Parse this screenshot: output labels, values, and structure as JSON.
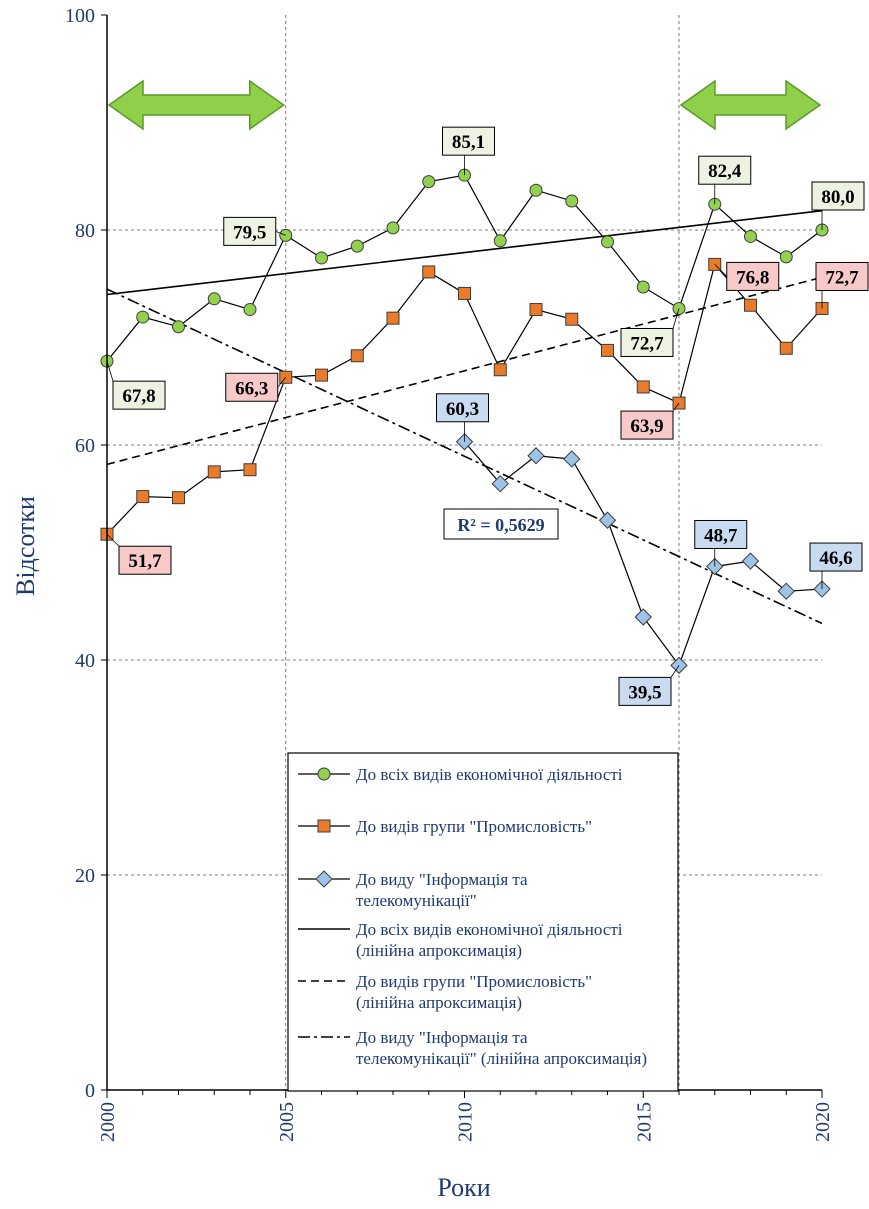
{
  "chart_data": {
    "type": "line",
    "xlabel": "Роки",
    "ylabel": "Відсотки",
    "xlim": [
      2000,
      2020
    ],
    "ylim": [
      0,
      100
    ],
    "x_ticks": [
      "2000",
      "2005",
      "2010",
      "2015",
      "2020"
    ],
    "y_ticks": [
      "0",
      "20",
      "40",
      "60",
      "80",
      "100"
    ],
    "vertical_reference_lines": [
      2005,
      2016
    ],
    "highlight_arrows": [
      [
        2000,
        2005
      ],
      [
        2016,
        2020
      ]
    ],
    "x": [
      2000,
      2001,
      2002,
      2003,
      2004,
      2005,
      2006,
      2007,
      2008,
      2009,
      2010,
      2011,
      2012,
      2013,
      2014,
      2015,
      2016,
      2017,
      2018,
      2019,
      2020
    ],
    "series": [
      {
        "name": "До всіх видів економічної діяльності",
        "marker": "circle",
        "color": "#92d050",
        "values": [
          67.8,
          71.9,
          71.0,
          73.6,
          72.6,
          79.5,
          77.4,
          78.5,
          80.2,
          84.5,
          85.1,
          79.0,
          83.7,
          82.7,
          78.9,
          74.7,
          72.7,
          82.4,
          79.4,
          77.5,
          80.0
        ]
      },
      {
        "name": "До видів групи \"Промисловість\"",
        "marker": "square",
        "color": "#e97b2b",
        "values": [
          51.7,
          55.2,
          55.1,
          57.5,
          57.7,
          66.3,
          66.5,
          68.3,
          71.8,
          76.1,
          74.1,
          67.0,
          72.6,
          71.7,
          68.8,
          65.4,
          63.9,
          76.8,
          73.0,
          69.0,
          72.7
        ]
      },
      {
        "name": "До виду \"Інформація та телекомунікації\"",
        "marker": "diamond",
        "color": "#9dc3e6",
        "x": [
          2010,
          2011,
          2012,
          2013,
          2014,
          2015,
          2016,
          2017,
          2018,
          2019,
          2020
        ],
        "values": [
          60.3,
          56.4,
          59.0,
          58.7,
          53.0,
          44.0,
          39.5,
          48.7,
          49.2,
          46.4,
          46.6
        ]
      }
    ],
    "trendlines": [
      {
        "name": "До всіх видів економічної діяльності (лінійна апроксимація)",
        "style": "solid",
        "x": [
          2000,
          2020
        ],
        "values": [
          74.0,
          81.8
        ]
      },
      {
        "name": "До видів групи \"Промисловість\" (лінійна апроксимація)",
        "style": "dashed",
        "x": [
          2000,
          2020
        ],
        "values": [
          58.2,
          75.6
        ]
      },
      {
        "name": "До виду \"Інформація та телекомунікації\" (лінійна апроксимація)",
        "style": "dashdot",
        "x": [
          2000,
          2020
        ],
        "values": [
          74.5,
          43.4
        ]
      }
    ],
    "annotations": [
      {
        "series": 0,
        "x": 2000,
        "text": "67,8",
        "fill": "#eef2e2",
        "dx": 6,
        "dy": 20
      },
      {
        "series": 0,
        "x": 2005,
        "text": "79,5",
        "fill": "#eef2e2",
        "dx": -62,
        "dy": -18
      },
      {
        "series": 0,
        "x": 2010,
        "text": "85,1",
        "fill": "#eef2e2",
        "dx": -22,
        "dy": -48
      },
      {
        "series": 0,
        "x": 2016,
        "text": "72,7",
        "fill": "#eef2e2",
        "dx": -58,
        "dy": 20
      },
      {
        "series": 0,
        "x": 2017,
        "text": "82,4",
        "fill": "#eef2e2",
        "dx": -16,
        "dy": -48
      },
      {
        "series": 0,
        "x": 2020,
        "text": "80,0",
        "fill": "#eef2e2",
        "dx": -10,
        "dy": -48
      },
      {
        "series": 1,
        "x": 2000,
        "text": "51,7",
        "fill": "#f8c9c9",
        "dx": 12,
        "dy": 12
      },
      {
        "series": 1,
        "x": 2005,
        "text": "66,3",
        "fill": "#f8c9c9",
        "dx": -60,
        "dy": -4
      },
      {
        "series": 1,
        "x": 2016,
        "text": "63,9",
        "fill": "#f8c9c9",
        "dx": -58,
        "dy": 8
      },
      {
        "series": 1,
        "x": 2017,
        "text": "76,8",
        "fill": "#f8c9c9",
        "dx": 12,
        "dy": -2
      },
      {
        "series": 1,
        "x": 2020,
        "text": "72,7",
        "fill": "#f8c9c9",
        "dx": 0,
        "dy": -46
      },
      {
        "series": 2,
        "x": 2010,
        "text": "60,3",
        "fill": "#c9dbf0",
        "dx": -28,
        "dy": -48
      },
      {
        "series": 2,
        "x": 2016,
        "text": "39,5",
        "fill": "#c9dbf0",
        "dx": -60,
        "dy": 12
      },
      {
        "series": 2,
        "x": 2017,
        "text": "48,7",
        "fill": "#c9dbf0",
        "dx": -20,
        "dy": -46
      },
      {
        "series": 2,
        "x": 2020,
        "text": "46,6",
        "fill": "#c9dbf0",
        "dx": -12,
        "dy": -46
      }
    ],
    "r_squared_label": "R² = 0,5629",
    "legend": {
      "placement": "bottom-center",
      "entries": [
        {
          "lines": [
            "До всіх видів економічної діяльності"
          ],
          "kind": "series",
          "marker": "circle",
          "color": "#92d050"
        },
        {
          "lines": [
            "До видів групи \"Промисловість\""
          ],
          "kind": "series",
          "marker": "square",
          "color": "#e97b2b"
        },
        {
          "lines": [
            "До виду \"Інформація та",
            "телекомунікації\""
          ],
          "kind": "series",
          "marker": "diamond",
          "color": "#9dc3e6"
        },
        {
          "lines": [
            "До всіх видів економічної діяльності",
            "(лінійна апроксимація)"
          ],
          "kind": "trend",
          "style": "solid"
        },
        {
          "lines": [
            "До видів групи \"Промисловість\"",
            "(лінійна апроксимація)"
          ],
          "kind": "trend",
          "style": "dashed"
        },
        {
          "lines": [
            "До виду \"Інформація та",
            "телекомунікації\" (лінійна апроксимація)"
          ],
          "kind": "trend",
          "style": "dashdot"
        }
      ]
    },
    "colors": {
      "axis_text": "#1f3a6e",
      "arrow_fill": "#8fcf4a",
      "arrow_stroke": "#5a9a2a"
    }
  }
}
